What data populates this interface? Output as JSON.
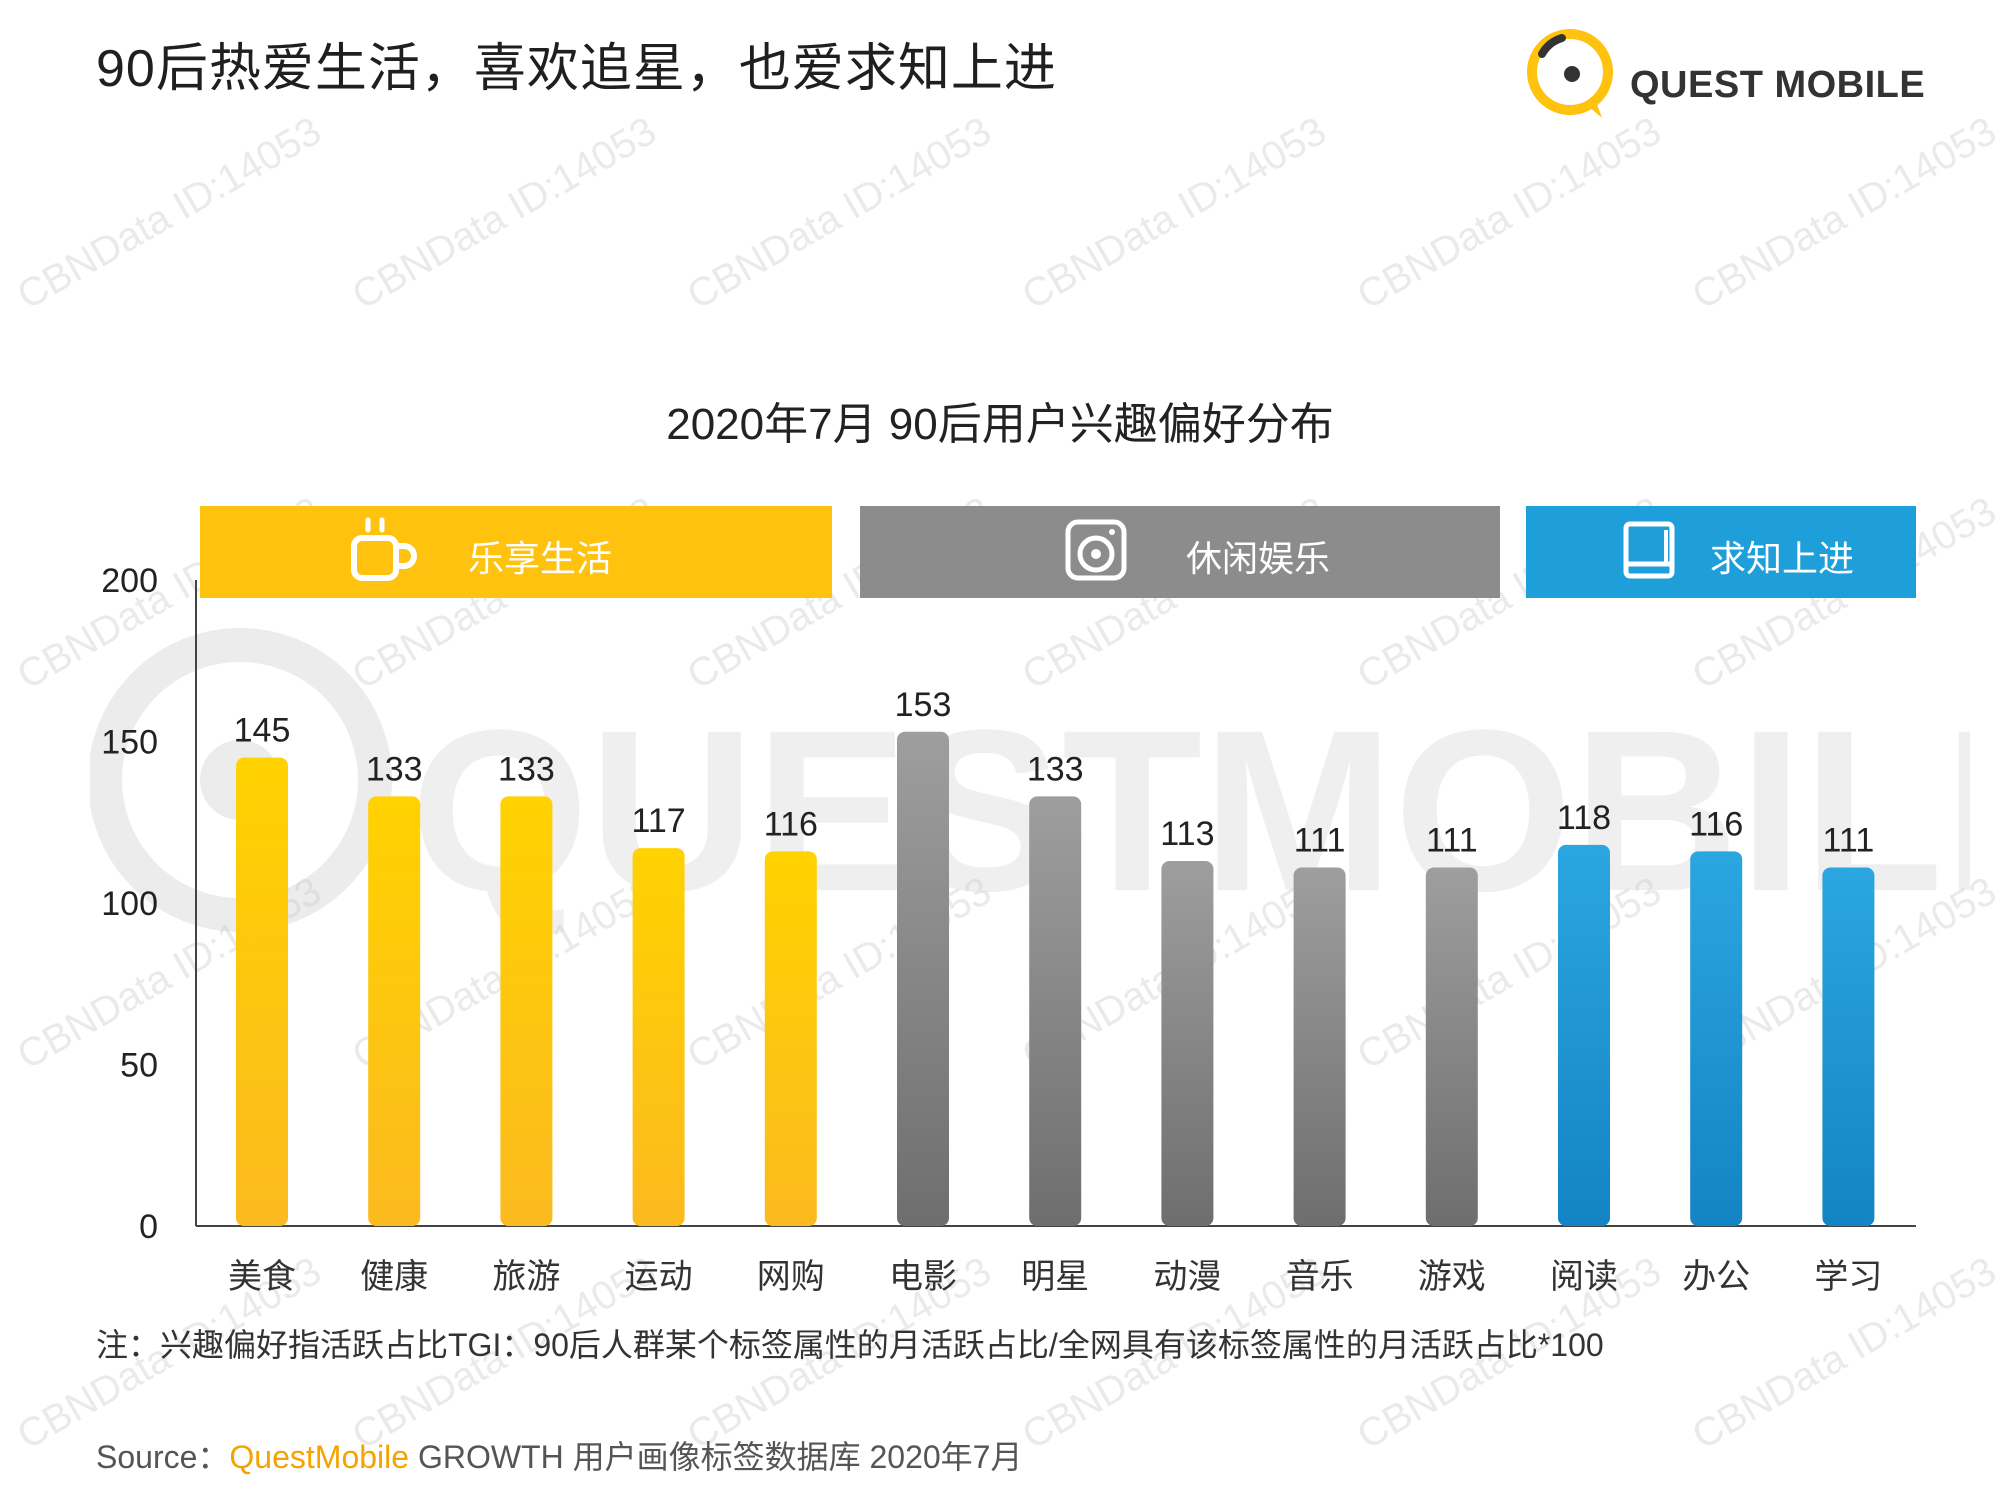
{
  "headline": "90后热爱生活，喜欢追星，也爱求知上进",
  "logo": {
    "text": "QUEST MOBILE",
    "icon": "questmobile-logo-icon"
  },
  "watermark": {
    "text": "CBNData ID:14053",
    "big_text": "QUESTMOBILE"
  },
  "groups": [
    {
      "label": "乐享生活",
      "icon": "coffee-cup-icon",
      "color": "#FFC20E"
    },
    {
      "label": "休闲娱乐",
      "icon": "music-disc-icon",
      "color": "#8C8C8C"
    },
    {
      "label": "求知上进",
      "icon": "book-icon",
      "color": "#1E9FD9"
    }
  ],
  "chart_data": {
    "type": "bar",
    "title": "2020年7月 90后用户兴趣偏好分布",
    "categories": [
      "美食",
      "健康",
      "旅游",
      "运动",
      "网购",
      "电影",
      "明星",
      "动漫",
      "音乐",
      "游戏",
      "阅读",
      "办公",
      "学习"
    ],
    "values": [
      145,
      133,
      133,
      117,
      116,
      153,
      133,
      113,
      111,
      111,
      118,
      116,
      111
    ],
    "group_index": [
      0,
      0,
      0,
      0,
      0,
      1,
      1,
      1,
      1,
      1,
      2,
      2,
      2
    ],
    "ylim": [
      0,
      200
    ],
    "yticks": [
      0,
      50,
      100,
      150,
      200
    ],
    "xlabel": "",
    "ylabel": "",
    "grid": false,
    "colors": {
      "yellow_top": "#FFD200",
      "yellow_bottom": "#FBBA1F",
      "gray_top": "#9E9E9E",
      "gray_bottom": "#6E6E6E",
      "blue_top": "#2BA6E0",
      "blue_bottom": "#1384C4"
    }
  },
  "note": "注：兴趣偏好指活跃占比TGI：90后人群某个标签属性的月活跃占比/全网具有该标签属性的月活跃占比*100",
  "source": {
    "prefix": "Source：",
    "brand": "QuestMobile",
    "rest": " GROWTH 用户画像标签数据库 2020年7月"
  }
}
